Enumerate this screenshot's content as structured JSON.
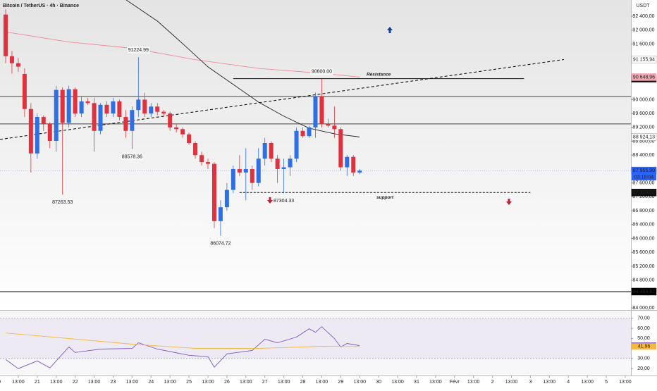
{
  "chart_data": [
    {
      "type": "candlestick",
      "title": "Bitcoin / TetherUS · 4h · Binance",
      "y_axis_label": "USDT",
      "up_color": "#2f6fe4",
      "down_color": "#e0313f",
      "x": [
        0,
        1,
        2,
        3,
        4,
        5,
        6,
        7,
        8,
        9,
        10,
        11,
        12,
        13,
        14,
        15,
        16,
        17,
        18,
        19,
        20,
        21,
        22,
        23,
        24,
        25,
        26,
        27,
        28,
        29,
        30,
        31,
        32,
        33,
        34,
        35,
        36,
        37,
        38,
        39,
        40,
        41,
        42,
        43,
        44,
        45,
        46,
        47,
        48,
        49,
        50,
        51,
        52,
        53,
        54,
        55,
        56
      ],
      "open": [
        92450,
        91250,
        91050,
        90740,
        89730,
        88450,
        89500,
        89300,
        88810,
        90280,
        89330,
        90300,
        89600,
        89950,
        89900,
        89100,
        89850,
        89600,
        89950,
        89500,
        89100,
        89700,
        90000,
        89600,
        89800,
        89650,
        89600,
        89200,
        89150,
        89000,
        88750,
        88400,
        88200,
        88150,
        86500,
        86900,
        87400,
        88000,
        87900,
        88000,
        87600,
        88300,
        88750,
        88300,
        88000,
        88050,
        88300,
        89100,
        88950,
        89200,
        90100,
        89300,
        89250,
        89150,
        88050,
        88350,
        87900
      ],
      "high": [
        92600,
        91400,
        91200,
        90900,
        89900,
        89600,
        89550,
        89350,
        90400,
        90350,
        90400,
        90350,
        90100,
        90050,
        90050,
        89900,
        89950,
        90050,
        90000,
        89700,
        89800,
        91224.99,
        90200,
        89900,
        89900,
        89700,
        89650,
        89300,
        89200,
        89050,
        88800,
        88500,
        88300,
        88200,
        87100,
        87600,
        88100,
        88400,
        88600,
        88100,
        88600,
        88900,
        88800,
        88400,
        88300,
        88400,
        89200,
        89200,
        89250,
        90200,
        90600.0,
        89450,
        89800,
        89200,
        88400,
        88400,
        88000
      ],
      "low": [
        91050,
        90750,
        90800,
        89500,
        87900,
        88300,
        89100,
        88600,
        88500,
        87263.53,
        89200,
        89500,
        89500,
        89850,
        88500,
        89000,
        89500,
        89500,
        89400,
        88900,
        88578.36,
        89500,
        89500,
        89500,
        89550,
        89500,
        89100,
        89050,
        88900,
        88700,
        88300,
        88100,
        88000,
        86300,
        86074.72,
        86800,
        87300,
        87800,
        87100,
        87400,
        87500,
        88100,
        88200,
        87600,
        87304.33,
        87800,
        88200,
        88900,
        88900,
        88900,
        89200,
        89200,
        88900,
        87950,
        87800,
        87800,
        87850
      ],
      "close": [
        91250,
        91050,
        90950,
        89730,
        88450,
        89500,
        89300,
        88810,
        90280,
        89330,
        90300,
        89600,
        89950,
        89900,
        89100,
        89850,
        89600,
        89950,
        89500,
        89100,
        89700,
        90000,
        89600,
        89800,
        89650,
        89600,
        89200,
        89150,
        89000,
        88750,
        88400,
        88200,
        88150,
        86500,
        86900,
        87400,
        88000,
        87900,
        88000,
        87600,
        88300,
        88750,
        88300,
        88000,
        88050,
        88300,
        89100,
        88950,
        89200,
        90100,
        89300,
        89250,
        89150,
        88050,
        88350,
        87900,
        87955.9
      ],
      "last_label": "87 955,90",
      "countdown": "03:18:04",
      "last_color": "#2962ff",
      "xlim": [
        -0.89,
        98.9
      ],
      "ylim": [
        83940,
        92870
      ],
      "yticks": [
        {
          "value": 84000,
          "label": "84 000,00"
        },
        {
          "value": 84400,
          "label": "84 400,00"
        },
        {
          "value": 84800,
          "label": "84 800,00"
        },
        {
          "value": 85200,
          "label": "85 200,00"
        },
        {
          "value": 85600,
          "label": "85 600,00"
        },
        {
          "value": 86000,
          "label": "86 000,00"
        },
        {
          "value": 86400,
          "label": "86 400,00"
        },
        {
          "value": 86800,
          "label": "86 800,00"
        },
        {
          "value": 87200,
          "label": "87 200,00"
        },
        {
          "value": 87600,
          "label": "87 600,00"
        },
        {
          "value": 88000,
          "label": "88 000,00"
        },
        {
          "value": 88400,
          "label": "88 400,00"
        },
        {
          "value": 88800,
          "label": "88 800,00"
        },
        {
          "value": 89200,
          "label": "89 200,00"
        },
        {
          "value": 89600,
          "label": "89 600,00"
        },
        {
          "value": 90000,
          "label": "90 000,00"
        },
        {
          "value": 91600,
          "label": "91 600,00"
        },
        {
          "value": 92000,
          "label": "92 000,00"
        },
        {
          "value": 92400,
          "label": "92 400,00"
        }
      ],
      "xticks": [
        {
          "value": -1,
          "label": "0"
        },
        {
          "value": 2,
          "label": "13:00"
        },
        {
          "value": 5,
          "label": "21"
        },
        {
          "value": 8,
          "label": "13:00"
        },
        {
          "value": 11,
          "label": "22"
        },
        {
          "value": 14,
          "label": "13:00"
        },
        {
          "value": 17,
          "label": "23"
        },
        {
          "value": 20,
          "label": "13:00"
        },
        {
          "value": 23,
          "label": "24"
        },
        {
          "value": 26,
          "label": "13:00"
        },
        {
          "value": 29,
          "label": "25"
        },
        {
          "value": 32,
          "label": "13:00"
        },
        {
          "value": 35,
          "label": "26"
        },
        {
          "value": 38,
          "label": "13:00"
        },
        {
          "value": 41,
          "label": "27"
        },
        {
          "value": 44,
          "label": "13:00"
        },
        {
          "value": 47,
          "label": "28"
        },
        {
          "value": 50,
          "label": "13:00"
        },
        {
          "value": 53,
          "label": "29"
        },
        {
          "value": 56,
          "label": "13:00"
        },
        {
          "value": 59,
          "label": "30"
        },
        {
          "value": 62,
          "label": "13:00"
        },
        {
          "value": 65,
          "label": "31"
        },
        {
          "value": 68,
          "label": "13:00"
        },
        {
          "value": 71,
          "label": "Févr"
        },
        {
          "value": 74,
          "label": "13:00"
        },
        {
          "value": 77,
          "label": "2"
        },
        {
          "value": 80,
          "label": "13:00"
        },
        {
          "value": 83,
          "label": "3"
        },
        {
          "value": 86,
          "label": "13:00"
        },
        {
          "value": 89,
          "label": "4"
        },
        {
          "value": 92,
          "label": "13:00"
        },
        {
          "value": 95,
          "label": "5"
        },
        {
          "value": 98,
          "label": "13:00"
        }
      ],
      "overlays": [
        {
          "color": "#f08a9a",
          "dash": false,
          "x": [
            0,
            10,
            20,
            30,
            40,
            50,
            56
          ],
          "values": [
            91950,
            91660,
            91480,
            91150,
            90900,
            90760,
            90648.96
          ],
          "label": "90 648,96",
          "badge_color": "#f4a7b3"
        },
        {
          "color": "#222222",
          "dash": false,
          "x": [
            19,
            24,
            28,
            32,
            36,
            40,
            44,
            48,
            52,
            56
          ],
          "values": [
            92880,
            92264,
            91614,
            90944,
            90437,
            89929,
            89523,
            89178,
            89015,
            88924.13
          ],
          "label": "88 924,13",
          "badge_color": "#ffffff"
        },
        {
          "color": "#111111",
          "dash": true,
          "x": [
            -0.89,
            88.3
          ],
          "values": [
            88853,
            91155.94
          ],
          "label": "91 155,94",
          "badge_color": "#ffffff"
        }
      ],
      "levels": [
        {
          "value": 90091,
          "color": "#444444"
        },
        {
          "value": 89300,
          "color": "#444444"
        },
        {
          "value": 84468.82,
          "color": "#000000",
          "label": "84 468,82"
        },
        {
          "value": 90604.31,
          "color": "#111111",
          "from": 36,
          "to": 82,
          "label": "90 604,31",
          "text": "Résistance"
        },
        {
          "value": 87324.62,
          "color": "#111111",
          "from": 37,
          "to": 83,
          "dash": true,
          "label": "87 324,62",
          "text": "support"
        }
      ],
      "price_labels": [
        {
          "label": "91224.99",
          "x": 21,
          "value": 91224.99,
          "side": "above"
        },
        {
          "label": "88578.36",
          "x": 20,
          "value": 88578.36,
          "side": "below"
        },
        {
          "label": "87263.53",
          "x": 9,
          "value": 87263.53,
          "side": "below"
        },
        {
          "label": "86074.72",
          "x": 34,
          "value": 86074.72,
          "side": "below"
        },
        {
          "label": "87304.33",
          "x": 44,
          "value": 87304.33,
          "side": "below"
        },
        {
          "label": "90600.00",
          "x": 50,
          "value": 90600.0,
          "side": "above"
        }
      ]
    },
    {
      "type": "line",
      "ylim": [
        13.1,
        77.6
      ],
      "band": [
        30,
        70
      ],
      "yticks": [
        {
          "value": 20,
          "label": "20,00"
        },
        {
          "value": 30,
          "label": "30,00"
        },
        {
          "value": 50,
          "label": "50,00"
        },
        {
          "value": 60,
          "label": "60,00"
        },
        {
          "value": 70,
          "label": "70,00"
        }
      ],
      "series": [
        {
          "color": "#7e57c2",
          "x": [
            0,
            2,
            5,
            7,
            10,
            11,
            15,
            20,
            21,
            24,
            29,
            32,
            33,
            35,
            39,
            41,
            43,
            46,
            48,
            49,
            50,
            52,
            53,
            54,
            56
          ],
          "values": [
            29,
            20,
            27.6,
            20.7,
            41.5,
            36,
            39.4,
            40,
            45.7,
            39.4,
            33.2,
            31.8,
            21.4,
            34.6,
            38,
            49.2,
            45.7,
            51.3,
            59.6,
            56.1,
            61.7,
            49.9,
            41.5,
            45,
            42.81
          ],
          "value_label": "42,81"
        },
        {
          "color": "#f5b942",
          "x": [
            0,
            10,
            20,
            30,
            40,
            50,
            56
          ],
          "values": [
            55.4,
            49.9,
            44.3,
            40.1,
            40.1,
            42.2,
            41.96
          ],
          "value_label": "41,96"
        }
      ]
    }
  ]
}
